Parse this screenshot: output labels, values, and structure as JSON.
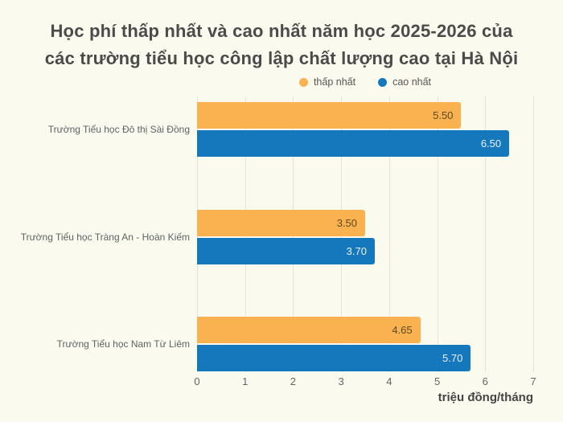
{
  "title": {
    "line1": "Học phí thấp nhất và cao nhất năm học 2025-2026 của",
    "line2": "các trường tiểu học công lập chất lượng cao tại Hà Nội"
  },
  "legend": [
    {
      "label": "thấp nhất",
      "color": "#F9B24F"
    },
    {
      "label": "cao nhất",
      "color": "#1678BC"
    }
  ],
  "chart_data": {
    "type": "bar",
    "orientation": "horizontal",
    "title": "Học phí thấp nhất và cao nhất năm học 2025-2026 của các trường tiểu học công lập chất lượng cao tại Hà Nội",
    "categories": [
      "Trường Tiểu học Đô thị Sài Đồng",
      "Trường Tiểu học Tràng An - Hoàn Kiếm",
      "Trường Tiểu học Nam Từ Liêm"
    ],
    "series": [
      {
        "name": "thấp nhất",
        "color": "#F9B24F",
        "values": [
          5.5,
          3.5,
          4.65
        ],
        "label_color": "#5D4A1E"
      },
      {
        "name": "cao nhất",
        "color": "#1678BC",
        "values": [
          6.5,
          3.7,
          5.7
        ],
        "label_color": "#EAF2F8"
      }
    ],
    "xlabel": "triệu đồng/tháng",
    "ylabel": "",
    "xlim": [
      0,
      7
    ],
    "xticks": [
      0,
      1,
      2,
      3,
      4,
      5,
      6,
      7
    ],
    "grid": true,
    "gridline_color": "#E3E3D8",
    "background_color": "#FBFAEE",
    "legend_position": "top-center",
    "value_label_decimals": 2
  }
}
